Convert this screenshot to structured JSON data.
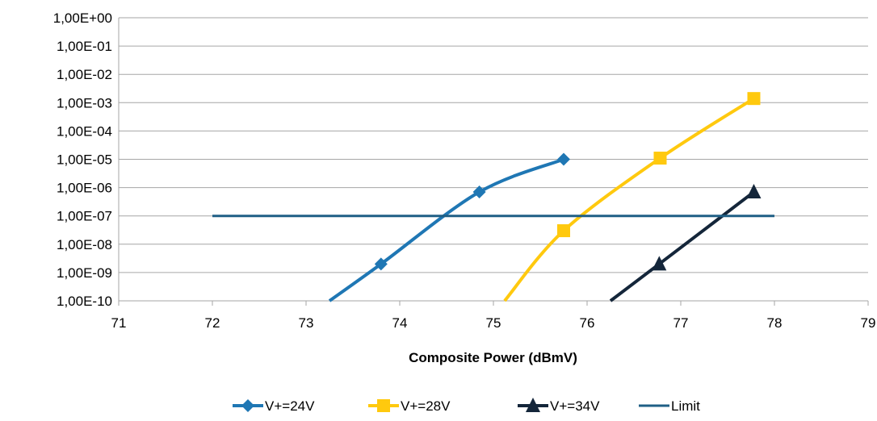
{
  "chart_data": {
    "type": "line",
    "title": "",
    "xlabel": "Composite Power (dBmV)",
    "ylabel": "",
    "xlim": [
      71,
      79
    ],
    "x_ticks": [
      71,
      72,
      73,
      74,
      75,
      76,
      77,
      78,
      79
    ],
    "y_scale": "log",
    "ylim": [
      1e-10,
      1
    ],
    "y_tick_labels": [
      "1,00E+00",
      "1,00E-01",
      "1,00E-02",
      "1,00E-03",
      "1,00E-04",
      "1,00E-05",
      "1,00E-06",
      "1,00E-07",
      "1,00E-08",
      "1,00E-09",
      "1,00E-10"
    ],
    "grid": true,
    "legend_position": "bottom",
    "series": [
      {
        "name": "V+=24V",
        "color": "#1F77B4",
        "marker": "diamond",
        "points": [
          [
            73.25,
            1e-10
          ],
          [
            73.8,
            2e-09
          ],
          [
            74.85,
            7e-07
          ],
          [
            75.75,
            1e-05
          ]
        ],
        "marked": [
          false,
          true,
          true,
          true
        ]
      },
      {
        "name": "V+=28V",
        "color": "#FFC90E",
        "marker": "square",
        "points": [
          [
            75.12,
            1e-10
          ],
          [
            75.75,
            3e-08
          ],
          [
            76.78,
            1.1e-05
          ],
          [
            77.78,
            0.0014
          ]
        ],
        "marked": [
          false,
          true,
          true,
          true
        ]
      },
      {
        "name": "V+=34V",
        "color": "#14263A",
        "marker": "triangle",
        "points": [
          [
            76.25,
            1e-10
          ],
          [
            76.77,
            2e-09
          ],
          [
            77.78,
            7e-07
          ]
        ],
        "marked": [
          false,
          true,
          true
        ]
      },
      {
        "name": "Limit",
        "color": "#1F5F85",
        "marker": "none",
        "points": [
          [
            72,
            1e-07
          ],
          [
            78,
            1e-07
          ]
        ],
        "marked": [
          false,
          false
        ]
      }
    ]
  }
}
